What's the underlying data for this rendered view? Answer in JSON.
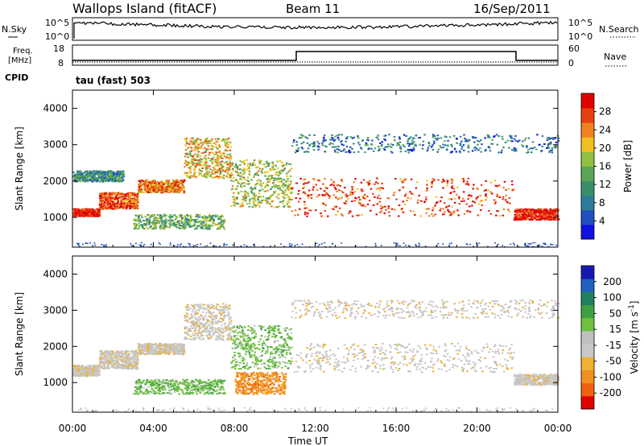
{
  "header": {
    "station": "Wallops Island (fitACF)",
    "beam": "Beam 11",
    "date": "16/Sep/2011",
    "cpid_label": "CPID",
    "program": "tau (fast) 503"
  },
  "noise_panel": {
    "left_label": "N.Sky",
    "right_label": "N.Search",
    "ticks_left": [
      "10^5",
      "10^0"
    ],
    "ticks_right": [
      "10^5",
      "10^0"
    ]
  },
  "freq_panel": {
    "left_label_1": "Freq.",
    "left_label_2": "[MHz]",
    "right_label": "Nave",
    "ticks_left": [
      "18",
      "8"
    ],
    "ticks_right": [
      "60",
      "0"
    ]
  },
  "chart_data": [
    {
      "type": "heatmap",
      "name_hint": "power",
      "ylabel": "Slant Range [km]",
      "xlabel": "Time UT",
      "xlim": [
        0,
        24
      ],
      "ylim": [
        180,
        4500
      ],
      "x_ticks": [
        "00:00",
        "04:00",
        "08:00",
        "12:00",
        "16:00",
        "20:00",
        "00:00"
      ],
      "y_ticks": [
        1000,
        2000,
        3000,
        4000
      ],
      "colorbar": {
        "label": "Power [dB]",
        "ticks": [
          "4",
          "8",
          "12",
          "16",
          "20",
          "24",
          "28"
        ],
        "colors": [
          "#1010e0",
          "#2050c0",
          "#2d7d9a",
          "#3a8f6a",
          "#5aa555",
          "#8fc040",
          "#f0c020",
          "#f08020",
          "#e84010",
          "#e00000"
        ]
      },
      "bands": [
        {
          "t": [
            0,
            1.3
          ],
          "r": [
            1050,
            1250
          ],
          "level": 9
        },
        {
          "t": [
            1.3,
            3.2
          ],
          "r": [
            1250,
            1700
          ],
          "level": 8
        },
        {
          "t": [
            3.2,
            5.5
          ],
          "r": [
            1700,
            2050
          ],
          "level": 7
        },
        {
          "t": [
            5.5,
            7.8
          ],
          "r": [
            2100,
            3200
          ],
          "level": 6
        },
        {
          "t": [
            7.8,
            10.8
          ],
          "r": [
            1300,
            2600
          ],
          "level": 5
        },
        {
          "t": [
            3.0,
            7.5
          ],
          "r": [
            700,
            1100
          ],
          "level": 4
        },
        {
          "t": [
            10.8,
            21.8
          ],
          "r": [
            1050,
            2100
          ],
          "level": 8
        },
        {
          "t": [
            21.8,
            24
          ],
          "r": [
            950,
            1250
          ],
          "level": 9
        },
        {
          "t": [
            10.8,
            24
          ],
          "r": [
            2800,
            3300
          ],
          "level": 2
        },
        {
          "t": [
            0,
            2.5
          ],
          "r": [
            2000,
            2300
          ],
          "level": 3
        }
      ]
    },
    {
      "type": "heatmap",
      "name_hint": "velocity",
      "ylabel": "Slant Range [km]",
      "xlabel": "Time UT",
      "xlim": [
        0,
        24
      ],
      "ylim": [
        180,
        4500
      ],
      "x_ticks": [
        "00:00",
        "04:00",
        "08:00",
        "12:00",
        "16:00",
        "20:00",
        "00:00"
      ],
      "y_ticks": [
        1000,
        2000,
        3000,
        4000
      ],
      "colorbar": {
        "label": "Velocity [m s",
        "label_sup": "-1",
        "label_end": "]",
        "ticks": [
          "200",
          "100",
          "50",
          "15",
          "-15",
          "-50",
          "-100",
          "-200"
        ],
        "colors": [
          "#1818b0",
          "#2060c0",
          "#208060",
          "#40a040",
          "#70c040",
          "#c0c0c0",
          "#c8c8c8",
          "#f0b030",
          "#f09020",
          "#f06010",
          "#e00000"
        ]
      },
      "bands": [
        {
          "t": [
            0,
            1.3
          ],
          "r": [
            1200,
            1500
          ],
          "color": 6
        },
        {
          "t": [
            1.3,
            3.2
          ],
          "r": [
            1400,
            1900
          ],
          "color": 6
        },
        {
          "t": [
            3.2,
            5.5
          ],
          "r": [
            1800,
            2100
          ],
          "color": 6
        },
        {
          "t": [
            5.5,
            7.8
          ],
          "r": [
            2200,
            3200
          ],
          "color": 6
        },
        {
          "t": [
            7.8,
            10.8
          ],
          "r": [
            1400,
            2600
          ],
          "color": 4
        },
        {
          "t": [
            3.0,
            7.5
          ],
          "r": [
            700,
            1100
          ],
          "color": 4
        },
        {
          "t": [
            8.0,
            10.5
          ],
          "r": [
            700,
            1300
          ],
          "color": 8
        },
        {
          "t": [
            10.8,
            21.8
          ],
          "r": [
            1300,
            2100
          ],
          "color": 6
        },
        {
          "t": [
            21.8,
            24
          ],
          "r": [
            950,
            1250
          ],
          "color": 6
        },
        {
          "t": [
            10.8,
            24
          ],
          "r": [
            2800,
            3300
          ],
          "color": 6
        }
      ]
    }
  ]
}
